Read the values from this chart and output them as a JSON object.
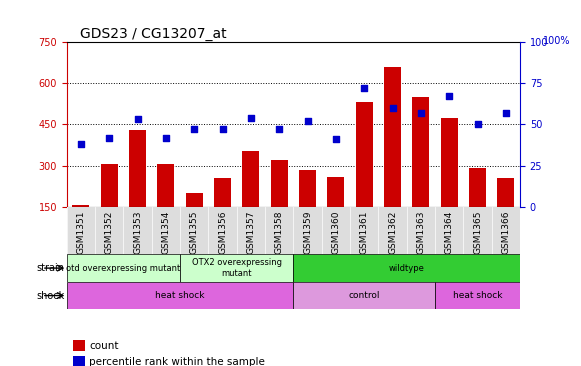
{
  "title": "GDS23 / CG13207_at",
  "samples": [
    "GSM1351",
    "GSM1352",
    "GSM1353",
    "GSM1354",
    "GSM1355",
    "GSM1356",
    "GSM1357",
    "GSM1358",
    "GSM1359",
    "GSM1360",
    "GSM1361",
    "GSM1362",
    "GSM1363",
    "GSM1364",
    "GSM1365",
    "GSM1366"
  ],
  "counts": [
    155,
    305,
    430,
    305,
    200,
    255,
    355,
    320,
    285,
    260,
    530,
    660,
    550,
    475,
    290,
    255
  ],
  "percentiles": [
    38,
    42,
    53,
    42,
    47,
    47,
    54,
    47,
    52,
    41,
    72,
    60,
    57,
    67,
    50,
    57
  ],
  "ylim_left": [
    150,
    750
  ],
  "ylim_right": [
    0,
    100
  ],
  "yticks_left": [
    150,
    300,
    450,
    600,
    750
  ],
  "yticks_right": [
    0,
    25,
    50,
    75,
    100
  ],
  "bar_color": "#cc0000",
  "dot_color": "#0000cc",
  "strain_groups": [
    {
      "label": "otd overexpressing mutant",
      "start": 0,
      "end": 4,
      "color": "#ccffcc"
    },
    {
      "label": "OTX2 overexpressing\nmutant",
      "start": 4,
      "end": 8,
      "color": "#ccffcc"
    },
    {
      "label": "wildtype",
      "start": 8,
      "end": 16,
      "color": "#33cc33"
    }
  ],
  "shock_groups": [
    {
      "label": "heat shock",
      "start": 0,
      "end": 8,
      "color": "#dd66dd"
    },
    {
      "label": "control",
      "start": 8,
      "end": 13,
      "color": "#dd99dd"
    },
    {
      "label": "heat shock",
      "start": 13,
      "end": 16,
      "color": "#dd66dd"
    }
  ],
  "strain_label": "strain",
  "shock_label": "shock",
  "legend_count_label": "count",
  "legend_pct_label": "percentile rank within the sample",
  "bar_width": 0.6,
  "xtick_bg": "#dddddd",
  "grid_dotted_at": [
    300,
    450,
    600
  ],
  "title_fontsize": 10,
  "tick_fontsize": 7,
  "sample_fontsize": 6.5,
  "label_fontsize": 6,
  "row_label_fontsize": 7,
  "legend_fontsize": 7.5
}
